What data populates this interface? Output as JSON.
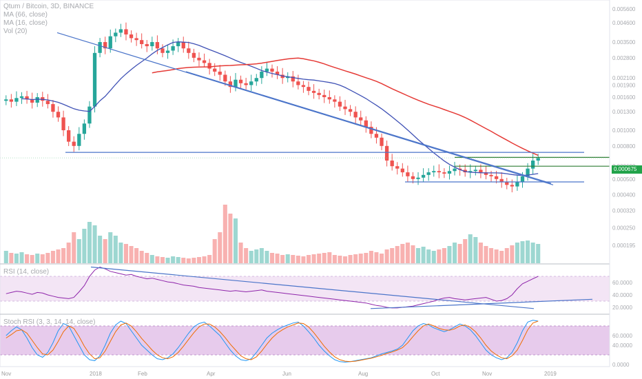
{
  "legend": {
    "symbol": "Qtum / Bitcoin, 3D, BINANCE",
    "ma66": "MA (66, close)",
    "ma16": "MA (16, close)",
    "vol": "Vol (20)"
  },
  "rsi_label": "RSI (14, close)",
  "stoch_label": "Stoch RSI (3, 3, 14, 14, close)",
  "current_price": "0.000675",
  "colors": {
    "up": "#26a69a",
    "down": "#ef5350",
    "ma66": "#e53935",
    "ma16": "#3f51b5",
    "trend": "#4a74c9",
    "green_line": "#2e7d32",
    "rsi_fill": "#f3e5f5",
    "stoch_fill": "#e1bee7"
  },
  "chart_data": [
    {
      "type": "candlestick",
      "title": "Qtum / Bitcoin, 3D, BINANCE",
      "y_scale": "log",
      "y_tick_labels": [
        "0.005600",
        "0.004600",
        "0.003500",
        "0.002800",
        "0.002100",
        "0.001900",
        "0.001600",
        "0.001300",
        "0.001000",
        "0.000800",
        "0.000600",
        "0.000500",
        "0.000400",
        "0.000320",
        "0.000250",
        "0.000195"
      ],
      "x_tick_labels": [
        "Nov",
        "2018",
        "Feb",
        "Apr",
        "Jun",
        "Aug",
        "Oct",
        "Nov",
        "2019"
      ],
      "close_series": [
        0.00155,
        0.0015,
        0.00158,
        0.00162,
        0.00155,
        0.00148,
        0.0016,
        0.00152,
        0.00145,
        0.0013,
        0.0012,
        0.001,
        0.00085,
        0.0008,
        0.00095,
        0.0011,
        0.0014,
        0.003,
        0.0035,
        0.0032,
        0.0038,
        0.004,
        0.0042,
        0.0039,
        0.0037,
        0.0036,
        0.0034,
        0.0033,
        0.0035,
        0.0032,
        0.003,
        0.0031,
        0.0033,
        0.0035,
        0.0032,
        0.003,
        0.0028,
        0.0027,
        0.0026,
        0.0024,
        0.0023,
        0.0022,
        0.002,
        0.00185,
        0.00205,
        0.00195,
        0.0019,
        0.002,
        0.0021,
        0.0023,
        0.0024,
        0.0023,
        0.0022,
        0.0021,
        0.00215,
        0.002,
        0.0019,
        0.00185,
        0.00175,
        0.0017,
        0.00165,
        0.0016,
        0.00155,
        0.0015,
        0.0014,
        0.00135,
        0.0013,
        0.0012,
        0.00115,
        0.00105,
        0.00095,
        0.0009,
        0.0008,
        0.00065,
        0.0006,
        0.00058,
        0.00055,
        0.00052,
        0.0005,
        0.00051,
        0.00053,
        0.00055,
        0.00056,
        0.00055,
        0.00054,
        0.00056,
        0.00058,
        0.00057,
        0.00055,
        0.00056,
        0.00057,
        0.00055,
        0.00053,
        0.00052,
        0.0005,
        0.00048,
        0.00046,
        0.00045,
        0.00048,
        0.00052,
        0.00058,
        0.00065,
        0.000675
      ],
      "volume_series": [
        0.18,
        0.15,
        0.14,
        0.16,
        0.13,
        0.12,
        0.14,
        0.13,
        0.15,
        0.18,
        0.2,
        0.22,
        0.3,
        0.45,
        0.35,
        0.5,
        0.6,
        0.55,
        0.4,
        0.35,
        0.45,
        0.4,
        0.3,
        0.28,
        0.25,
        0.22,
        0.18,
        0.15,
        0.12,
        0.1,
        0.09,
        0.08,
        0.1,
        0.09,
        0.08,
        0.07,
        0.08,
        0.09,
        0.1,
        0.12,
        0.35,
        0.45,
        0.85,
        0.72,
        0.65,
        0.3,
        0.22,
        0.18,
        0.2,
        0.22,
        0.18,
        0.15,
        0.14,
        0.12,
        0.13,
        0.12,
        0.11,
        0.1,
        0.12,
        0.13,
        0.14,
        0.15,
        0.16,
        0.12,
        0.11,
        0.1,
        0.12,
        0.13,
        0.14,
        0.15,
        0.18,
        0.16,
        0.14,
        0.2,
        0.22,
        0.25,
        0.28,
        0.3,
        0.26,
        0.22,
        0.24,
        0.2,
        0.18,
        0.2,
        0.22,
        0.25,
        0.3,
        0.28,
        0.35,
        0.42,
        0.38,
        0.3,
        0.25,
        0.22,
        0.2,
        0.18,
        0.22,
        0.26,
        0.3,
        0.32,
        0.33,
        0.3,
        0.28
      ],
      "ma_series_names": [
        "MA (66, close)",
        "MA (16, close)"
      ],
      "volume_name": "Vol (20)"
    },
    {
      "type": "line",
      "title": "RSI (14, close)",
      "y_tick_labels": [
        "60.0000",
        "40.0000",
        "20.0000"
      ],
      "ylim": [
        10,
        90
      ],
      "band": [
        30,
        70
      ],
      "values": [
        42,
        44,
        46,
        45,
        43,
        41,
        44,
        43,
        40,
        38,
        36,
        35,
        34,
        36,
        45,
        55,
        70,
        80,
        85,
        82,
        78,
        76,
        74,
        72,
        73,
        70,
        68,
        66,
        67,
        65,
        63,
        61,
        60,
        58,
        56,
        55,
        54,
        52,
        51,
        50,
        49,
        48,
        47,
        46,
        47,
        46,
        45,
        46,
        47,
        48,
        46,
        45,
        44,
        43,
        42,
        41,
        40,
        39,
        38,
        37,
        36,
        35,
        34,
        33,
        32,
        31,
        30,
        29,
        28,
        27,
        25,
        23,
        22,
        20,
        19,
        19,
        20,
        21,
        22,
        24,
        26,
        28,
        30,
        33,
        35,
        36,
        34,
        33,
        32,
        33,
        34,
        35,
        36,
        33,
        30,
        31,
        34,
        40,
        50,
        58,
        62,
        66,
        70
      ]
    },
    {
      "type": "line",
      "title": "Stoch RSI (3, 3, 14, 14, close)",
      "y_tick_labels": [
        "60.0000",
        "40.0000",
        "0.0000"
      ],
      "ylim": [
        0,
        100
      ],
      "band": [
        20,
        80
      ],
      "k_values": [
        60,
        70,
        78,
        72,
        55,
        35,
        20,
        15,
        25,
        45,
        70,
        85,
        80,
        60,
        40,
        20,
        10,
        8,
        18,
        40,
        65,
        82,
        90,
        85,
        70,
        55,
        40,
        30,
        20,
        12,
        10,
        14,
        22,
        35,
        50,
        65,
        78,
        85,
        88,
        80,
        70,
        60,
        45,
        30,
        18,
        10,
        8,
        12,
        25,
        40,
        55,
        65,
        72,
        78,
        82,
        86,
        88,
        80,
        68,
        55,
        40,
        28,
        18,
        10,
        6,
        5,
        6,
        8,
        10,
        12,
        14,
        18,
        22,
        25,
        28,
        32,
        40,
        55,
        70,
        80,
        85,
        82,
        76,
        72,
        68,
        72,
        78,
        84,
        80,
        72,
        60,
        45,
        30,
        20,
        14,
        10,
        14,
        25,
        45,
        70,
        88,
        92,
        90
      ],
      "d_values": [
        55,
        62,
        70,
        72,
        65,
        50,
        35,
        22,
        20,
        30,
        48,
        68,
        80,
        75,
        58,
        38,
        22,
        12,
        14,
        28,
        48,
        68,
        82,
        86,
        80,
        68,
        54,
        42,
        30,
        20,
        14,
        12,
        16,
        25,
        38,
        52,
        66,
        78,
        84,
        84,
        78,
        68,
        56,
        42,
        30,
        18,
        12,
        10,
        16,
        28,
        42,
        55,
        65,
        72,
        78,
        82,
        86,
        85,
        78,
        66,
        52,
        38,
        26,
        16,
        10,
        7,
        6,
        7,
        9,
        11,
        13,
        16,
        19,
        23,
        26,
        30,
        35,
        45,
        58,
        70,
        80,
        84,
        80,
        75,
        72,
        71,
        74,
        80,
        82,
        77,
        68,
        55,
        40,
        28,
        20,
        14,
        12,
        18,
        30,
        50,
        72,
        86,
        90
      ]
    }
  ]
}
